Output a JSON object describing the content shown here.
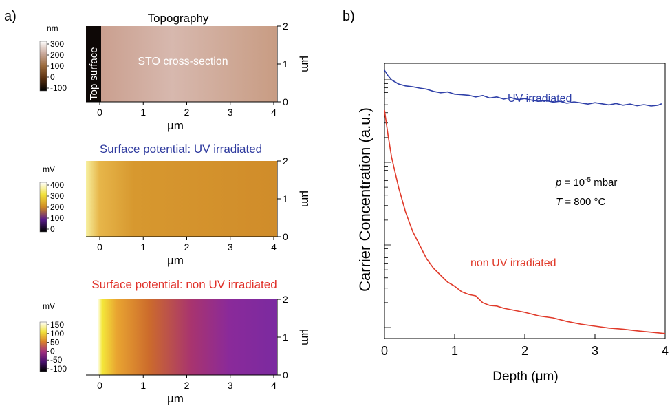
{
  "panels": {
    "a_label": "a)",
    "b_label": "b)"
  },
  "maps": [
    {
      "title": "Topography",
      "title_color": "#000000",
      "unit": "nm",
      "colorbar_ticks": [
        "300",
        "200",
        "100",
        "0",
        "-100"
      ],
      "colorbar_colors": [
        "#ffffff",
        "#c9a89a",
        "#9a6a3c",
        "#5a3010",
        "#000000"
      ],
      "x_ticks": [
        "0",
        "1",
        "2",
        "3",
        "4"
      ],
      "x_label": "µm",
      "y_ticks": [
        "2",
        "1",
        "0"
      ],
      "y_label": "µm",
      "annotations": [
        "Top surface",
        "STO cross-section"
      ]
    },
    {
      "title": "Surface potential: UV irradiated",
      "title_color": "#2e3a9e",
      "unit": "mV",
      "colorbar_ticks": [
        "400",
        "300",
        "200",
        "100",
        "0"
      ],
      "colorbar_colors": [
        "#ffffff",
        "#f2e23a",
        "#cf8a22",
        "#5a1a8c",
        "#000000"
      ],
      "x_ticks": [
        "0",
        "1",
        "2",
        "3",
        "4"
      ],
      "x_label": "µm",
      "y_ticks": [
        "2",
        "1",
        "0"
      ],
      "y_label": "µm",
      "annotations": []
    },
    {
      "title": "Surface potential: non UV irradiated",
      "title_color": "#e0312a",
      "unit": "mV",
      "colorbar_ticks": [
        "150",
        "100",
        "50",
        "0",
        "-50",
        "-100"
      ],
      "colorbar_colors": [
        "#ffffff",
        "#f2e23a",
        "#d9802a",
        "#a02e7e",
        "#4a1070",
        "#000000"
      ],
      "x_ticks": [
        "0",
        "1",
        "2",
        "3",
        "4"
      ],
      "x_label": "µm",
      "y_ticks": [
        "2",
        "1",
        "0"
      ],
      "y_label": "µm",
      "annotations": []
    }
  ],
  "chart_data": {
    "type": "line",
    "xlabel": "Depth (μm)",
    "ylabel": "Carrier Concentration (a.u.)",
    "xlim": [
      0,
      4
    ],
    "x_ticks": [
      "0",
      "1",
      "2",
      "3",
      "4"
    ],
    "y_scale": "log",
    "annotation_lines": [
      "p = 10-5 mbar",
      "T = 800 °C"
    ],
    "annotation_parts": {
      "p": "p",
      "p_rest": " = 10",
      "exp": "-5",
      "mbar": " mbar",
      "T": "T",
      "T_rest": " = 800 °C"
    },
    "series": [
      {
        "name": "UV irradiated",
        "color": "#2e3fa8",
        "x": [
          0,
          0.05,
          0.1,
          0.2,
          0.3,
          0.4,
          0.5,
          0.6,
          0.7,
          0.8,
          0.9,
          1.0,
          1.1,
          1.2,
          1.3,
          1.4,
          1.5,
          1.6,
          1.7,
          1.8,
          1.9,
          2.0,
          2.1,
          2.2,
          2.3,
          2.4,
          2.5,
          2.6,
          2.7,
          2.8,
          2.9,
          3.0,
          3.1,
          3.2,
          3.3,
          3.4,
          3.5,
          3.6,
          3.7,
          3.8,
          3.9,
          3.95
        ],
        "y": [
          0.975,
          0.955,
          0.94,
          0.925,
          0.918,
          0.915,
          0.91,
          0.906,
          0.898,
          0.893,
          0.896,
          0.888,
          0.886,
          0.884,
          0.878,
          0.883,
          0.874,
          0.878,
          0.87,
          0.876,
          0.868,
          0.872,
          0.866,
          0.862,
          0.865,
          0.859,
          0.862,
          0.855,
          0.86,
          0.856,
          0.852,
          0.857,
          0.853,
          0.849,
          0.854,
          0.848,
          0.852,
          0.846,
          0.85,
          0.845,
          0.848,
          0.853
        ]
      },
      {
        "name": "non UV irradiated",
        "color": "#e03a2a",
        "x": [
          0,
          0.05,
          0.1,
          0.2,
          0.3,
          0.4,
          0.5,
          0.6,
          0.7,
          0.8,
          0.9,
          1.0,
          1.1,
          1.2,
          1.3,
          1.4,
          1.5,
          1.6,
          1.7,
          1.8,
          1.9,
          2.0,
          2.2,
          2.4,
          2.6,
          2.8,
          3.0,
          3.2,
          3.4,
          3.6,
          3.8,
          4.0
        ],
        "y": [
          0.83,
          0.74,
          0.66,
          0.55,
          0.46,
          0.39,
          0.34,
          0.29,
          0.255,
          0.23,
          0.205,
          0.19,
          0.17,
          0.16,
          0.155,
          0.13,
          0.12,
          0.118,
          0.11,
          0.105,
          0.1,
          0.095,
          0.082,
          0.075,
          0.062,
          0.052,
          0.045,
          0.038,
          0.034,
          0.028,
          0.023,
          0.018
        ]
      }
    ]
  }
}
